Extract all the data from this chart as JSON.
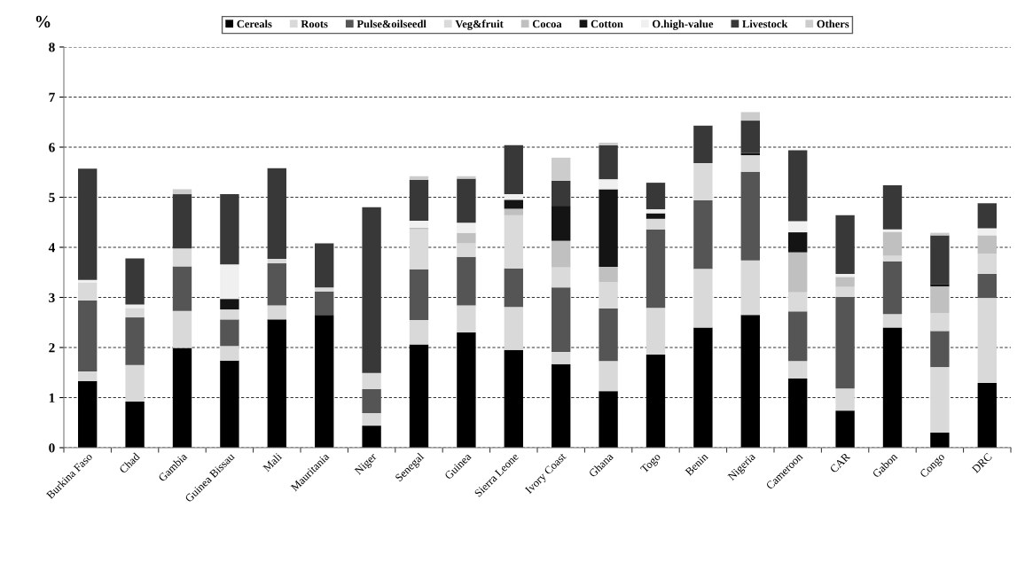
{
  "chart_data": {
    "type": "bar",
    "stacked": true,
    "ylabel": "%",
    "categories": [
      "Burkina Faso",
      "Chad",
      "Gambia",
      "Guinea Bissau",
      "Mali",
      "Mauritania",
      "Niger",
      "Senegal",
      "Guinea",
      "Sierra Leone",
      "Ivory Coast",
      "Ghana",
      "Togo",
      "Benin",
      "Nigeria",
      "Cameroon",
      "CAR",
      "Gabon",
      "Congo",
      "DRC"
    ],
    "series": [
      {
        "name": "Cereals",
        "color": "#000000",
        "values": [
          1.33,
          0.92,
          1.99,
          1.74,
          2.56,
          2.65,
          0.44,
          2.06,
          2.3,
          1.95,
          1.67,
          1.13,
          1.86,
          2.4,
          2.65,
          1.38,
          0.74,
          2.4,
          0.3,
          1.29
        ]
      },
      {
        "name": "Roots",
        "color": "#d9d9d9",
        "values": [
          0.19,
          0.73,
          0.74,
          0.29,
          0.28,
          0,
          0.25,
          0.49,
          0.54,
          0.86,
          0.24,
          0.6,
          0.93,
          1.17,
          1.09,
          0.35,
          0.44,
          0.27,
          1.31,
          1.7
        ]
      },
      {
        "name": "Pulse&oilseedl",
        "color": "#555555",
        "values": [
          1.42,
          0.95,
          0.89,
          0.53,
          0.84,
          0.47,
          0.48,
          1.01,
          0.97,
          0.77,
          1.29,
          1.05,
          1.57,
          1.37,
          1.77,
          0.99,
          1.83,
          1.05,
          0.72,
          0.48
        ]
      },
      {
        "name": "Veg&fruit",
        "color": "#dadada",
        "values": [
          0.36,
          0.19,
          0.36,
          0.2,
          0.09,
          0.08,
          0.32,
          0.8,
          0.27,
          1.06,
          0.4,
          0.53,
          0.21,
          0.74,
          0.33,
          0.38,
          0.2,
          0.11,
          0.36,
          0.4
        ]
      },
      {
        "name": "Cocoa",
        "color": "#c0c0c0",
        "values": [
          0,
          0,
          0,
          0,
          0,
          0,
          0,
          0.03,
          0.21,
          0.13,
          0.53,
          0.3,
          0,
          0,
          0,
          0.8,
          0.2,
          0.48,
          0.53,
          0.37
        ]
      },
      {
        "name": "Cotton",
        "color": "#141414",
        "values": [
          0,
          0,
          0,
          0.21,
          0,
          0,
          0,
          0,
          0,
          0.18,
          0.7,
          1.55,
          0.11,
          0,
          0.04,
          0.4,
          0,
          0,
          0.05,
          0
        ]
      },
      {
        "name": "O.high-value",
        "color": "#f0f0f0",
        "values": [
          0.05,
          0.07,
          0,
          0.69,
          0,
          0,
          0,
          0.14,
          0.2,
          0.11,
          0,
          0.2,
          0.08,
          0,
          0,
          0.22,
          0.06,
          0.05,
          0,
          0.14
        ]
      },
      {
        "name": "Livestock",
        "color": "#383838",
        "values": [
          2.22,
          0.92,
          1.08,
          1.4,
          1.81,
          0.88,
          3.31,
          0.82,
          0.88,
          0.98,
          0.5,
          0.68,
          0.53,
          0.75,
          0.65,
          1.42,
          1.17,
          0.88,
          0.97,
          0.5
        ]
      },
      {
        "name": "Others",
        "color": "#cccccc",
        "values": [
          0,
          0,
          0.1,
          0,
          0,
          0,
          0,
          0.07,
          0.05,
          0,
          0.46,
          0.05,
          0,
          0,
          0.17,
          0,
          0,
          0,
          0.05,
          0
        ]
      }
    ],
    "ylim": [
      0,
      8
    ],
    "yticks": [
      0,
      1,
      2,
      3,
      4,
      5,
      6,
      7,
      8
    ],
    "grid": "y",
    "legend": "top"
  }
}
